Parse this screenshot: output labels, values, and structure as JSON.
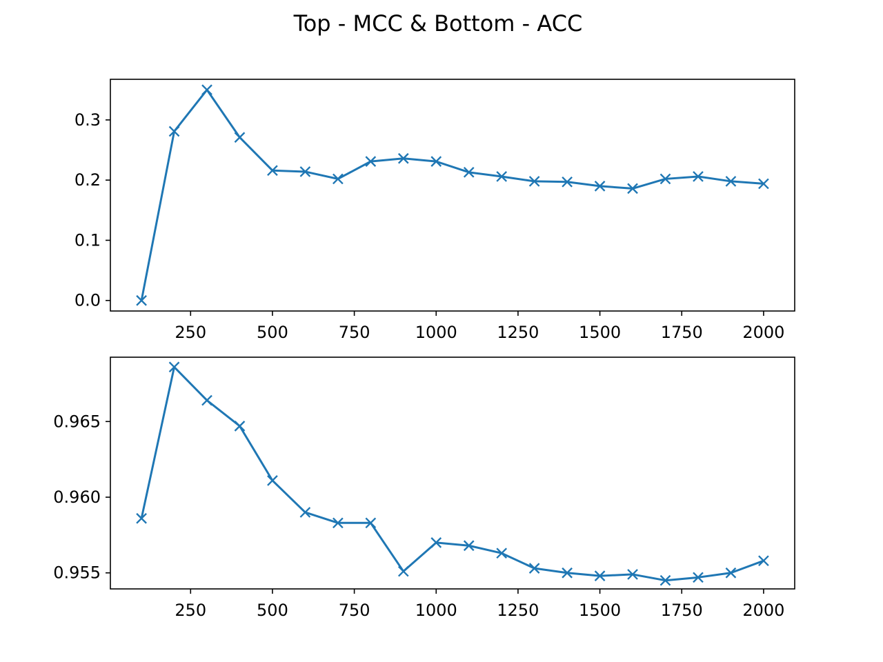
{
  "figure": {
    "title": "Top - MCC & Bottom - ACC"
  },
  "colors": {
    "series": "#1f77b4",
    "axes": "#000000",
    "background": "#ffffff"
  },
  "chart_data": [
    {
      "type": "line",
      "title": "",
      "xlabel": "",
      "ylabel": "",
      "marker": "x",
      "grid": false,
      "xlim": [
        5,
        2095
      ],
      "ylim": [
        -0.0175,
        0.3675
      ],
      "xticks": [
        250,
        500,
        750,
        1000,
        1250,
        1500,
        1750,
        2000
      ],
      "xtick_labels": [
        "250",
        "500",
        "750",
        "1000",
        "1250",
        "1500",
        "1750",
        "2000"
      ],
      "yticks": [
        0.0,
        0.1,
        0.2,
        0.3
      ],
      "ytick_labels": [
        "0.0",
        "0.1",
        "0.2",
        "0.3"
      ],
      "series": [
        {
          "x": [
            100,
            200,
            300,
            400,
            500,
            600,
            700,
            800,
            900,
            1000,
            1100,
            1200,
            1300,
            1400,
            1500,
            1600,
            1700,
            1800,
            1900,
            2000
          ],
          "y": [
            0.0,
            0.281,
            0.35,
            0.271,
            0.216,
            0.214,
            0.202,
            0.231,
            0.236,
            0.231,
            0.213,
            0.206,
            0.198,
            0.197,
            0.19,
            0.186,
            0.202,
            0.206,
            0.198,
            0.194
          ]
        }
      ]
    },
    {
      "type": "line",
      "title": "",
      "xlabel": "",
      "ylabel": "",
      "marker": "x",
      "grid": false,
      "xlim": [
        5,
        2095
      ],
      "ylim": [
        0.95394,
        0.96925
      ],
      "xticks": [
        250,
        500,
        750,
        1000,
        1250,
        1500,
        1750,
        2000
      ],
      "xtick_labels": [
        "250",
        "500",
        "750",
        "1000",
        "1250",
        "1500",
        "1750",
        "2000"
      ],
      "yticks": [
        0.955,
        0.96,
        0.965
      ],
      "ytick_labels": [
        "0.955",
        "0.960",
        "0.965"
      ],
      "series": [
        {
          "x": [
            100,
            200,
            300,
            400,
            500,
            600,
            700,
            800,
            900,
            1000,
            1100,
            1200,
            1300,
            1400,
            1500,
            1600,
            1700,
            1800,
            1900,
            2000
          ],
          "y": [
            0.9586,
            0.9686,
            0.9664,
            0.9647,
            0.9611,
            0.959,
            0.9583,
            0.9583,
            0.9551,
            0.957,
            0.9568,
            0.9563,
            0.9553,
            0.955,
            0.9548,
            0.9549,
            0.9545,
            0.9547,
            0.955,
            0.9558
          ]
        }
      ]
    }
  ]
}
